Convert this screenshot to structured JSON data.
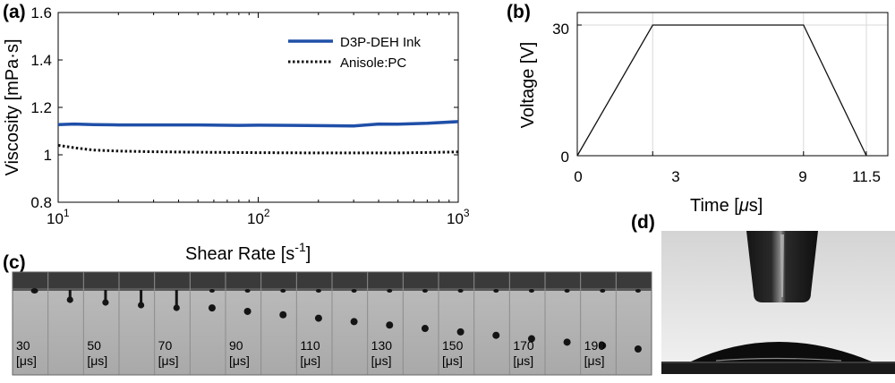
{
  "panel_labels": {
    "a": "(a)",
    "b": "(b)",
    "c": "(c)",
    "d": "(d)"
  },
  "chart_data": [
    {
      "type": "line",
      "panel": "(a)",
      "xlabel": "Shear Rate [s-1]",
      "xlabel_main": "Shear Rate [s",
      "xlabel_sup": "-1",
      "xlabel_close": "]",
      "ylabel": "Viscosity [mPa·s]",
      "xscale": "log",
      "xlim": [
        10,
        1000
      ],
      "ylim": [
        0.8,
        1.6
      ],
      "xticks": [
        10,
        100,
        1000
      ],
      "xtick_labels": [
        {
          "base": "10",
          "exp": "1"
        },
        {
          "base": "10",
          "exp": "2"
        },
        {
          "base": "10",
          "exp": "3"
        }
      ],
      "yticks": [
        0.8,
        1,
        1.2,
        1.4,
        1.6
      ],
      "ytick_labels": [
        "0.8",
        "1",
        "1.2",
        "1.4",
        "1.6"
      ],
      "grid": false,
      "legend": "top-right",
      "series": [
        {
          "name": "D3P-DEH Ink",
          "color": "#1f4fa8",
          "style": "solid",
          "x": [
            10,
            12,
            15,
            20,
            30,
            50,
            80,
            100,
            150,
            200,
            300,
            400,
            500,
            700,
            1000
          ],
          "y": [
            1.127,
            1.13,
            1.127,
            1.126,
            1.126,
            1.126,
            1.124,
            1.125,
            1.124,
            1.123,
            1.122,
            1.13,
            1.129,
            1.133,
            1.14
          ]
        },
        {
          "name": "Anisole:PC",
          "color": "#111111",
          "style": "dotted",
          "x": [
            10,
            12,
            15,
            20,
            30,
            50,
            100,
            200,
            500,
            700,
            1000
          ],
          "y": [
            1.04,
            1.03,
            1.02,
            1.016,
            1.013,
            1.011,
            1.009,
            1.008,
            1.008,
            1.01,
            1.012
          ]
        }
      ]
    },
    {
      "type": "line",
      "panel": "(b)",
      "xlabel": "Time [μs]",
      "xlabel_main": "Time [",
      "xlabel_mu": "μ",
      "xlabel_close": "s]",
      "ylabel": "Voltage [V]",
      "xlim": [
        0,
        11.5
      ],
      "ylim": [
        0,
        30
      ],
      "xticks": [
        0,
        3,
        9,
        11.5
      ],
      "xtick_labels": [
        "0",
        "3",
        "9",
        "11.5"
      ],
      "yticks": [
        0,
        30
      ],
      "ytick_labels": [
        "0",
        "30"
      ],
      "grid": true,
      "series": [
        {
          "color": "#111111",
          "x": [
            0,
            3,
            9,
            11.5
          ],
          "y": [
            0,
            30,
            30,
            0
          ]
        }
      ]
    }
  ],
  "strip_c": {
    "frames": [
      {
        "label": "30",
        "unit": "[μs]"
      },
      {
        "label": "",
        "unit": ""
      },
      {
        "label": "50",
        "unit": "[μs]"
      },
      {
        "label": "",
        "unit": ""
      },
      {
        "label": "70",
        "unit": "[μs]"
      },
      {
        "label": "",
        "unit": ""
      },
      {
        "label": "90",
        "unit": "[μs]"
      },
      {
        "label": "",
        "unit": ""
      },
      {
        "label": "110",
        "unit": "[μs]"
      },
      {
        "label": "",
        "unit": ""
      },
      {
        "label": "130",
        "unit": "[μs]"
      },
      {
        "label": "",
        "unit": ""
      },
      {
        "label": "150",
        "unit": "[μs]"
      },
      {
        "label": "",
        "unit": ""
      },
      {
        "label": "170",
        "unit": "[μs]"
      },
      {
        "label": "",
        "unit": ""
      },
      {
        "label": "190",
        "unit": "[μs]"
      },
      {
        "label": "",
        "unit": ""
      }
    ]
  }
}
